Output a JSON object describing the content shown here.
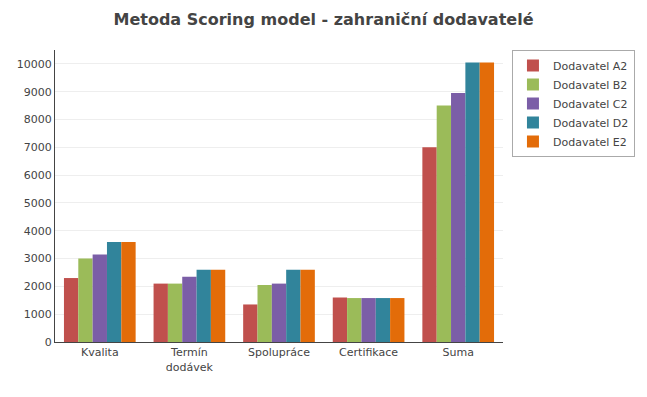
{
  "chart_data": {
    "type": "bar",
    "title": "Metoda Scoring model - zahraniční dodavatelé",
    "categories": [
      "Kvalita",
      "Termín\ndodávek",
      "Spolupráce",
      "Certifikace",
      "Suma"
    ],
    "series": [
      {
        "name": "Dodavatel A2",
        "color": "#C0504D",
        "values": [
          2300,
          2100,
          1350,
          1600,
          7000
        ]
      },
      {
        "name": "Dodavatel B2",
        "color": "#9BBB59",
        "values": [
          3000,
          2100,
          2050,
          1580,
          8500
        ]
      },
      {
        "name": "Dodavatel C2",
        "color": "#7B5EA7",
        "values": [
          3150,
          2350,
          2100,
          1580,
          8950
        ]
      },
      {
        "name": "Dodavatel D2",
        "color": "#31849B",
        "values": [
          3600,
          2600,
          2600,
          1580,
          10050
        ]
      },
      {
        "name": "Dodavatel E2",
        "color": "#E36C09",
        "values": [
          3600,
          2600,
          2600,
          1580,
          10050
        ]
      }
    ],
    "ylim": [
      0,
      10500
    ],
    "yticks": [
      0,
      1000,
      2000,
      3000,
      4000,
      5000,
      6000,
      7000,
      8000,
      9000,
      10000
    ],
    "grid": true,
    "legend": "upper right"
  }
}
